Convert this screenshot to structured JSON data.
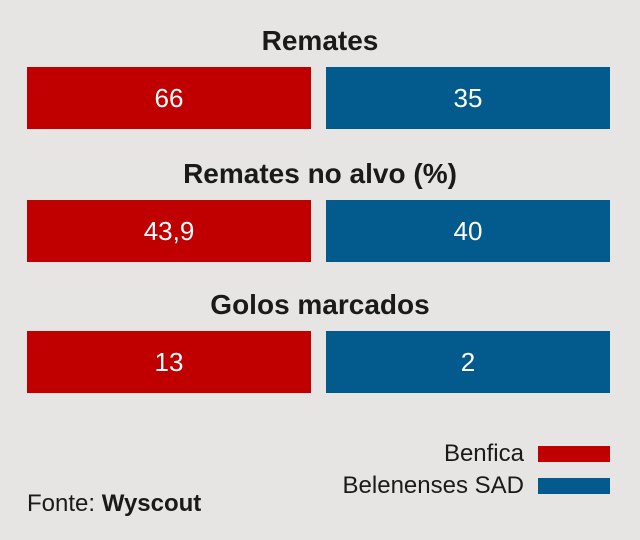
{
  "colors": {
    "background": "#e6e5e3",
    "benfica": "#c00000",
    "belenenses": "#035a8c"
  },
  "legend": {
    "benfica_label": "Benfica",
    "belenenses_label": "Belenenses SAD"
  },
  "source": {
    "prefix": "Fonte:",
    "name": "Wyscout"
  },
  "chart_data": {
    "type": "bar",
    "categories": [
      "Remates",
      "Remates no alvo (%)",
      "Golos marcados"
    ],
    "series": [
      {
        "name": "Benfica",
        "values": [
          "66",
          "43,9",
          "13"
        ],
        "color": "#c00000"
      },
      {
        "name": "Belenenses SAD",
        "values": [
          "35",
          "40",
          "2"
        ],
        "color": "#035a8c"
      }
    ],
    "legend_position": "bottom-right",
    "grid": false
  }
}
